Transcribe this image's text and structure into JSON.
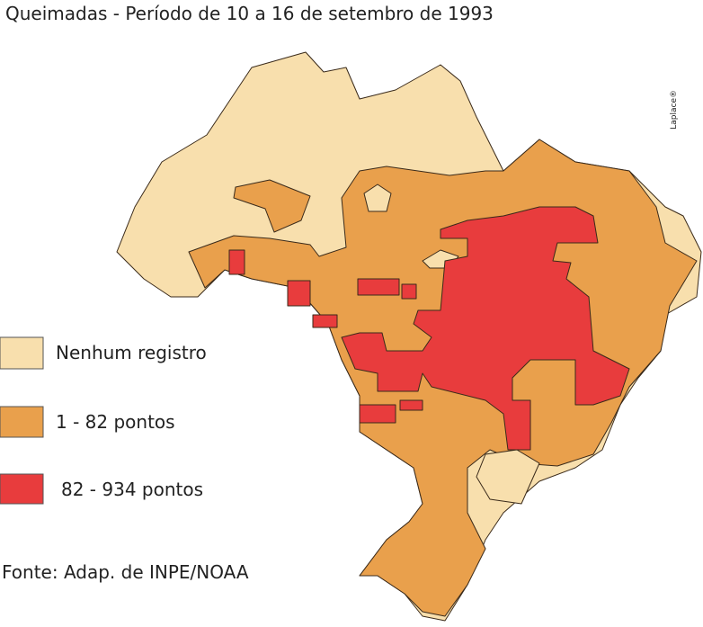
{
  "title": "Queimadas - Período de 10 a 16 de setembro de 1993",
  "legend": {
    "items": [
      {
        "label": "Nenhum registro",
        "color": "#f8dfad"
      },
      {
        "label": "1 - 82 pontos",
        "color": "#e9a04c"
      },
      {
        "label": "82 - 934 pontos",
        "color": "#e83c3d"
      }
    ]
  },
  "source": "Fonte: Adap. de INPE/NOAA",
  "credit": "Laplace®"
}
